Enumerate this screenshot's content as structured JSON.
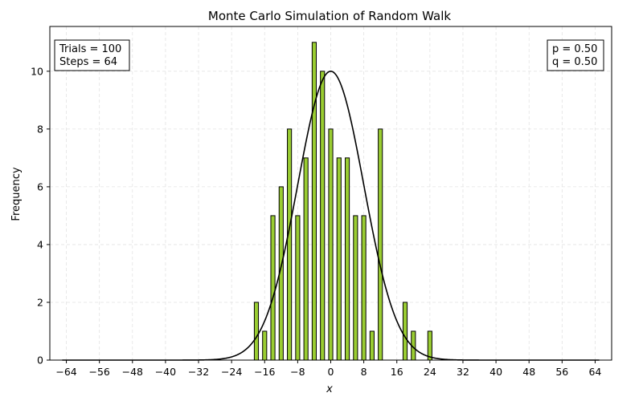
{
  "chart_data": {
    "type": "bar",
    "title": "Monte Carlo Simulation of Random Walk",
    "xlabel": "x",
    "ylabel": "Frequency",
    "xlim": [
      -68,
      68
    ],
    "ylim": [
      0,
      11.55
    ],
    "x_ticks": [
      -64,
      -56,
      -48,
      -40,
      -32,
      -24,
      -16,
      -8,
      0,
      8,
      16,
      24,
      32,
      40,
      48,
      56,
      64
    ],
    "x_tick_labels": [
      "−64",
      "−56",
      "−48",
      "−40",
      "−32",
      "−24",
      "−16",
      "−8",
      "0",
      "8",
      "16",
      "24",
      "32",
      "40",
      "48",
      "56",
      "64"
    ],
    "y_ticks": [
      0,
      2,
      4,
      6,
      8,
      10
    ],
    "y_tick_labels": [
      "0",
      "2",
      "4",
      "6",
      "8",
      "10"
    ],
    "grid": true,
    "bar_color": "#9acd32",
    "bar_edge_color": "#000000",
    "curve_color": "#000000",
    "bar_width": 1.0,
    "x": [
      -18,
      -16,
      -14,
      -12,
      -10,
      -8,
      -6,
      -4,
      -2,
      0,
      2,
      4,
      6,
      8,
      10,
      12,
      18,
      20,
      24
    ],
    "values": [
      2,
      1,
      5,
      6,
      8,
      5,
      7,
      11,
      10,
      8,
      7,
      7,
      5,
      5,
      1,
      8,
      2,
      1,
      1
    ],
    "curve": {
      "x_range": [
        -65,
        65
      ],
      "mean": 0,
      "std": 8,
      "peak": 10
    },
    "annotations": {
      "left": [
        "Trials = 100",
        "Steps = 64"
      ],
      "right": [
        "p = 0.50",
        "q = 0.50"
      ]
    }
  }
}
